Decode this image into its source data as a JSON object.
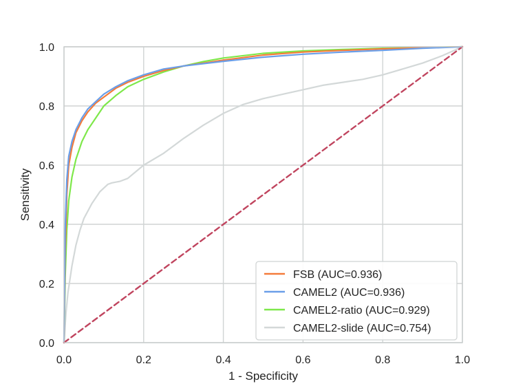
{
  "chart_data": {
    "type": "line",
    "xlabel": "1 - Specificity",
    "ylabel": "Sensitivity",
    "xlim": [
      0.0,
      1.0
    ],
    "ylim": [
      0.0,
      1.0
    ],
    "x_ticks": [
      "0.0",
      "0.2",
      "0.4",
      "0.6",
      "0.8",
      "1.0"
    ],
    "y_ticks": [
      "0.0",
      "0.2",
      "0.4",
      "0.6",
      "0.8",
      "1.0"
    ],
    "grid": true,
    "legend_position": "bottom-right",
    "series": [
      {
        "name": "FSB (AUC=0.936)",
        "color": "#f47b3a",
        "x": [
          0,
          0.003,
          0.007,
          0.012,
          0.02,
          0.03,
          0.045,
          0.06,
          0.08,
          0.1,
          0.13,
          0.16,
          0.2,
          0.25,
          0.3,
          0.35,
          0.4,
          0.5,
          0.6,
          0.7,
          0.8,
          0.9,
          1.0
        ],
        "y": [
          0,
          0.3,
          0.5,
          0.6,
          0.66,
          0.71,
          0.75,
          0.78,
          0.81,
          0.83,
          0.86,
          0.88,
          0.9,
          0.92,
          0.935,
          0.945,
          0.955,
          0.972,
          0.982,
          0.988,
          0.993,
          0.997,
          1.0
        ]
      },
      {
        "name": "CAMEL2 (AUC=0.936)",
        "color": "#6a9ee8",
        "x": [
          0,
          0.003,
          0.007,
          0.012,
          0.02,
          0.03,
          0.045,
          0.06,
          0.08,
          0.1,
          0.13,
          0.16,
          0.2,
          0.25,
          0.3,
          0.35,
          0.4,
          0.5,
          0.6,
          0.7,
          0.8,
          0.9,
          1.0
        ],
        "y": [
          0,
          0.38,
          0.55,
          0.63,
          0.68,
          0.72,
          0.76,
          0.79,
          0.815,
          0.84,
          0.865,
          0.885,
          0.905,
          0.925,
          0.935,
          0.943,
          0.951,
          0.965,
          0.975,
          0.982,
          0.988,
          0.995,
          1.0
        ]
      },
      {
        "name": "CAMEL2-ratio (AUC=0.929)",
        "color": "#7ee84a",
        "x": [
          0,
          0.003,
          0.007,
          0.012,
          0.02,
          0.03,
          0.045,
          0.06,
          0.08,
          0.1,
          0.13,
          0.16,
          0.2,
          0.25,
          0.3,
          0.35,
          0.4,
          0.5,
          0.6,
          0.7,
          0.8,
          0.9,
          1.0
        ],
        "y": [
          0,
          0.22,
          0.38,
          0.48,
          0.56,
          0.62,
          0.68,
          0.72,
          0.76,
          0.8,
          0.835,
          0.865,
          0.89,
          0.915,
          0.935,
          0.95,
          0.962,
          0.978,
          0.986,
          0.991,
          0.995,
          0.998,
          1.0
        ]
      },
      {
        "name": "CAMEL2-slide (AUC=0.754)",
        "color": "#d3d8d8",
        "x": [
          0,
          0.005,
          0.01,
          0.02,
          0.03,
          0.04,
          0.05,
          0.07,
          0.09,
          0.11,
          0.12,
          0.14,
          0.16,
          0.2,
          0.25,
          0.3,
          0.35,
          0.4,
          0.45,
          0.5,
          0.55,
          0.6,
          0.65,
          0.7,
          0.75,
          0.8,
          0.85,
          0.9,
          0.95,
          1.0
        ],
        "y": [
          0,
          0.1,
          0.17,
          0.26,
          0.33,
          0.38,
          0.42,
          0.47,
          0.51,
          0.535,
          0.54,
          0.545,
          0.555,
          0.6,
          0.64,
          0.69,
          0.735,
          0.775,
          0.805,
          0.825,
          0.84,
          0.855,
          0.87,
          0.88,
          0.89,
          0.905,
          0.925,
          0.945,
          0.97,
          1.0
        ]
      },
      {
        "name": "",
        "color": "#c0445e",
        "dashed": true,
        "x": [
          0,
          1
        ],
        "y": [
          0,
          1
        ]
      }
    ]
  }
}
